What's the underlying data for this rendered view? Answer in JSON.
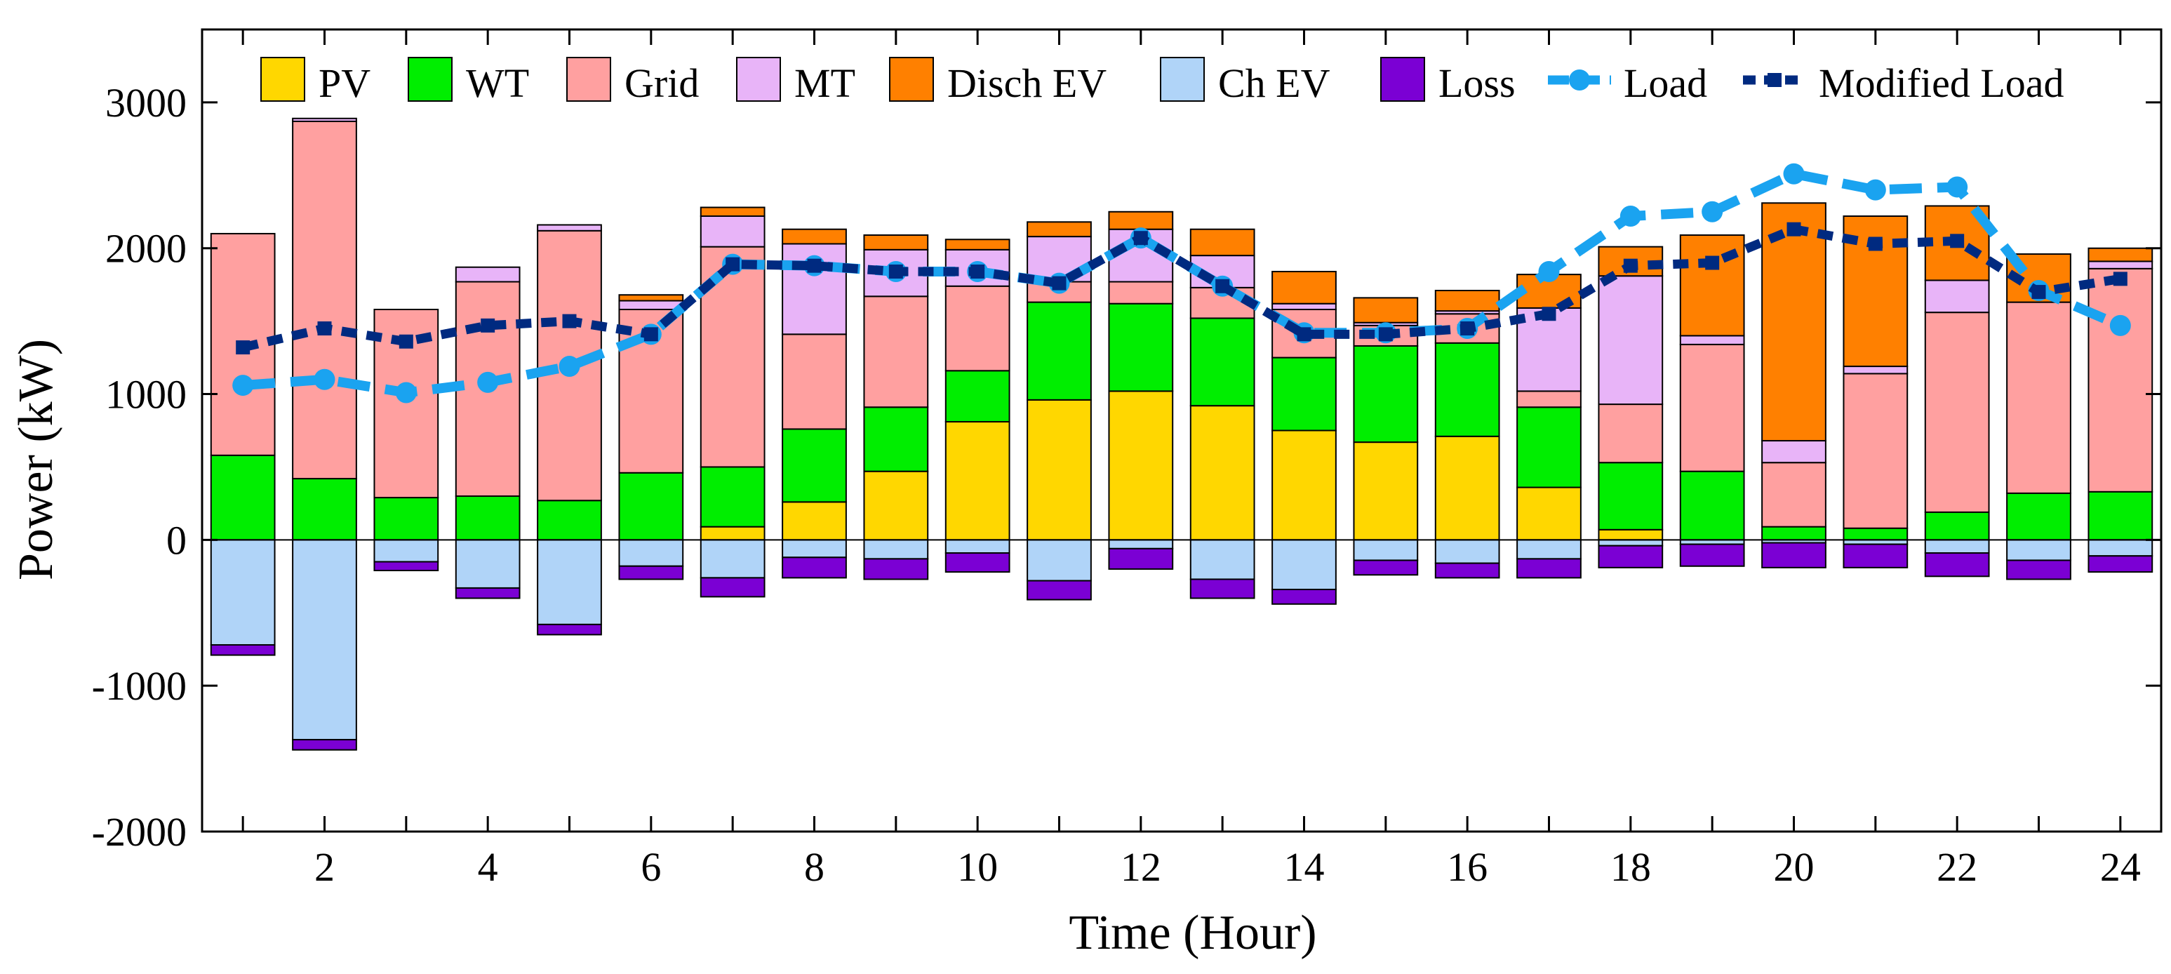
{
  "chart_data": {
    "type": "bar",
    "stacked": true,
    "xlabel": "Time (Hour)",
    "ylabel": "Power (kW)",
    "ylim": [
      -2000,
      3500
    ],
    "xlim": [
      0.5,
      24.5
    ],
    "yticks": [
      -2000,
      -1000,
      0,
      1000,
      2000,
      3000
    ],
    "ytick_labels": [
      "-2000",
      "-1000",
      "0",
      "1000",
      "2000",
      "3000"
    ],
    "xticks": [
      2,
      4,
      6,
      8,
      10,
      12,
      14,
      16,
      18,
      20,
      22,
      24
    ],
    "xtick_labels": [
      "2",
      "4",
      "6",
      "8",
      "10",
      "12",
      "14",
      "16",
      "18",
      "20",
      "22",
      "24"
    ],
    "grid": false,
    "legend_position": "top",
    "categories": [
      1,
      2,
      3,
      4,
      5,
      6,
      7,
      8,
      9,
      10,
      11,
      12,
      13,
      14,
      15,
      16,
      17,
      18,
      19,
      20,
      21,
      22,
      23,
      24
    ],
    "positive_series": [
      {
        "name": "PV",
        "color": "#FFD700",
        "values": [
          0,
          0,
          0,
          0,
          0,
          0,
          90,
          260,
          470,
          810,
          960,
          1020,
          920,
          750,
          670,
          710,
          360,
          70,
          0,
          0,
          0,
          0,
          0,
          0
        ]
      },
      {
        "name": "WT",
        "color": "#00EE00",
        "values": [
          580,
          420,
          290,
          300,
          270,
          460,
          410,
          500,
          440,
          350,
          670,
          600,
          600,
          500,
          660,
          640,
          550,
          460,
          470,
          90,
          80,
          190,
          320,
          330
        ]
      },
      {
        "name": "Grid",
        "color": "#FFA0A0",
        "values": [
          1520,
          2450,
          1290,
          1470,
          1850,
          1120,
          1510,
          650,
          760,
          580,
          140,
          150,
          210,
          330,
          140,
          200,
          110,
          400,
          870,
          440,
          1060,
          1370,
          1310,
          1530
        ]
      },
      {
        "name": "MT",
        "color": "#E8B4F8",
        "values": [
          0,
          20,
          0,
          100,
          40,
          60,
          210,
          620,
          320,
          250,
          310,
          360,
          220,
          40,
          20,
          20,
          570,
          880,
          60,
          150,
          50,
          220,
          0,
          50
        ]
      },
      {
        "name": "Disch EV",
        "color": "#FF8000",
        "values": [
          0,
          0,
          0,
          0,
          0,
          40,
          60,
          100,
          100,
          70,
          100,
          120,
          180,
          220,
          170,
          140,
          230,
          200,
          690,
          1630,
          1030,
          510,
          330,
          90
        ]
      }
    ],
    "negative_series": [
      {
        "name": "Ch EV",
        "color": "#B0D4F8",
        "values": [
          -720,
          -1370,
          -150,
          -330,
          -580,
          -180,
          -260,
          -120,
          -130,
          -90,
          -280,
          -60,
          -270,
          -340,
          -140,
          -160,
          -130,
          -40,
          -30,
          -20,
          -30,
          -90,
          -140,
          -110
        ]
      },
      {
        "name": "Loss",
        "color": "#7B00D4",
        "values": [
          -70,
          -70,
          -60,
          -70,
          -70,
          -90,
          -130,
          -140,
          -140,
          -130,
          -130,
          -140,
          -130,
          -100,
          -100,
          -100,
          -130,
          -150,
          -150,
          -170,
          -160,
          -160,
          -130,
          -110
        ]
      }
    ],
    "line_series": [
      {
        "name": "Load",
        "color": "#1AA3F0",
        "values": [
          1060,
          1100,
          1010,
          1080,
          1190,
          1410,
          1890,
          1880,
          1840,
          1840,
          1760,
          2070,
          1740,
          1420,
          1420,
          1450,
          1840,
          2220,
          2250,
          2510,
          2400,
          2420,
          1710,
          1470
        ]
      },
      {
        "name": "Modified Load",
        "color": "#002A80",
        "values": [
          1320,
          1450,
          1360,
          1470,
          1500,
          1410,
          1890,
          1880,
          1840,
          1840,
          1760,
          2070,
          1740,
          1410,
          1410,
          1450,
          1550,
          1880,
          1900,
          2130,
          2030,
          2050,
          1700,
          1790
        ]
      }
    ],
    "legend": [
      "PV",
      "WT",
      "Grid",
      "MT",
      "Disch EV",
      "Ch EV",
      "Loss",
      "Load",
      "Modified Load"
    ]
  }
}
